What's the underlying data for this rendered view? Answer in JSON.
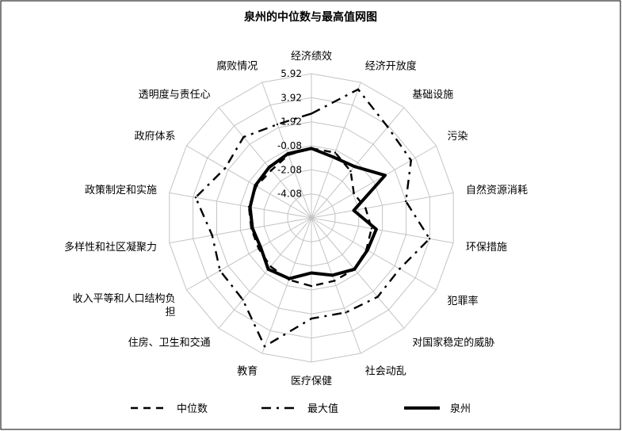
{
  "chart_data": {
    "type": "radar",
    "title": "泉州的中位数与最高值网图",
    "categories": [
      "经济绩效",
      "经济开放度",
      "基础设施",
      "污染",
      "自然资源消耗",
      "环保措施",
      "犯罪率",
      "对国家稳定的威胁",
      "社会动乱",
      "医疗保健",
      "教育",
      "住房、卫生和交通",
      "收入平等和人口结构负担",
      "多样性和社区凝聚力",
      "政策制定和实施",
      "政府体系",
      "透明度与责任心",
      "腐败情况"
    ],
    "category_label_lines": [
      [
        "经济绩效"
      ],
      [
        "经济开放度"
      ],
      [
        "基础设施"
      ],
      [
        "污染"
      ],
      [
        "自然资源消耗"
      ],
      [
        "环保措施"
      ],
      [
        "犯罪率"
      ],
      [
        "对国家稳定的威胁"
      ],
      [
        "社会动乱"
      ],
      [
        "医疗保健"
      ],
      [
        "教育"
      ],
      [
        "住房、卫生和交通"
      ],
      [
        "收入平等和人口结构负",
        "担"
      ],
      [
        "多样性和社区凝聚力"
      ],
      [
        "政策制定和实施"
      ],
      [
        "政府体系"
      ],
      [
        "透明度与责任心"
      ],
      [
        "腐败情况"
      ]
    ],
    "rlim": [
      -6.08,
      5.92
    ],
    "tick_values": [
      5.92,
      3.92,
      1.92,
      -0.08,
      -2.08,
      -4.08
    ],
    "tick_labels": [
      "5.92",
      "3.92",
      "1.92",
      "-0.08",
      "-2.08",
      "-4.08"
    ],
    "grid": true,
    "legend_position": "bottom",
    "series": [
      {
        "name": "中位数",
        "dash": "dash",
        "values": [
          -0.3,
          -0.3,
          -1.0,
          -2.0,
          -1.5,
          -1.0,
          -0.8,
          -0.5,
          -0.5,
          -0.4,
          -0.6,
          -0.8,
          -1.0,
          -1.0,
          -0.8,
          -0.8,
          -0.9,
          -0.5
        ]
      },
      {
        "name": "最大值",
        "dash": "dashdot",
        "values": [
          2.6,
          5.3,
          3.8,
          3.5,
          1.9,
          3.9,
          2.4,
          2.5,
          2.3,
          2.3,
          5.3,
          2.8,
          2.7,
          2.3,
          3.7,
          2.2,
          2.7,
          2.2
        ]
      },
      {
        "name": "泉州",
        "dash": "solid",
        "values": [
          -0.3,
          -0.7,
          -0.5,
          1.0,
          -2.5,
          -0.6,
          -0.7,
          -0.5,
          -1.0,
          -1.5,
          -0.7,
          -0.5,
          -1.2,
          -1.1,
          -0.9,
          -0.7,
          -0.6,
          -0.4
        ]
      }
    ]
  }
}
